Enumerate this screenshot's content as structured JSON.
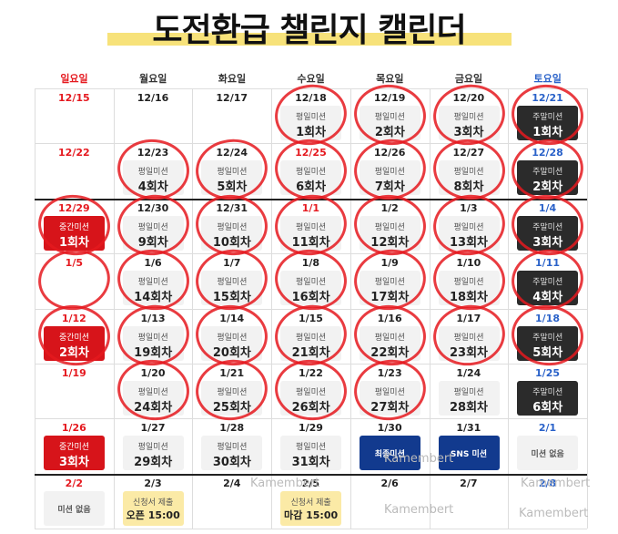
{
  "title": "도전환급 챌린지 캘린더",
  "weekdays": [
    "일요일",
    "월요일",
    "화요일",
    "수요일",
    "목요일",
    "금요일",
    "토요일"
  ],
  "weeks": [
    [
      {
        "date": "12/15"
      },
      {
        "date": "12/16"
      },
      {
        "date": "12/17"
      },
      {
        "date": "12/18",
        "mission": "평일미션",
        "count": "1회차"
      },
      {
        "date": "12/19",
        "mission": "평일미션",
        "count": "2회차"
      },
      {
        "date": "12/20",
        "mission": "평일미션",
        "count": "3회차"
      },
      {
        "date": "12/21",
        "mission": "주말미션",
        "count": "1회차"
      }
    ],
    [
      {
        "date": "12/22"
      },
      {
        "date": "12/23",
        "mission": "평일미션",
        "count": "4회차"
      },
      {
        "date": "12/24",
        "mission": "평일미션",
        "count": "5회차"
      },
      {
        "date": "12/25",
        "mission": "평일미션",
        "count": "6회차"
      },
      {
        "date": "12/26",
        "mission": "평일미션",
        "count": "7회차"
      },
      {
        "date": "12/27",
        "mission": "평일미션",
        "count": "8회차"
      },
      {
        "date": "12/28",
        "mission": "주말미션",
        "count": "2회차"
      }
    ],
    [
      {
        "date": "12/29",
        "mission": "중간미션",
        "count": "1회차"
      },
      {
        "date": "12/30",
        "mission": "평일미션",
        "count": "9회차"
      },
      {
        "date": "12/31",
        "mission": "평일미션",
        "count": "10회차"
      },
      {
        "date": "1/1",
        "mission": "평일미션",
        "count": "11회차"
      },
      {
        "date": "1/2",
        "mission": "평일미션",
        "count": "12회차"
      },
      {
        "date": "1/3",
        "mission": "평일미션",
        "count": "13회차"
      },
      {
        "date": "1/4",
        "mission": "주말미션",
        "count": "3회차"
      }
    ],
    [
      {
        "date": "1/5"
      },
      {
        "date": "1/6",
        "mission": "평일미션",
        "count": "14회차"
      },
      {
        "date": "1/7",
        "mission": "평일미션",
        "count": "15회차"
      },
      {
        "date": "1/8",
        "mission": "평일미션",
        "count": "16회차"
      },
      {
        "date": "1/9",
        "mission": "평일미션",
        "count": "17회차"
      },
      {
        "date": "1/10",
        "mission": "평일미션",
        "count": "18회차"
      },
      {
        "date": "1/11",
        "mission": "주말미션",
        "count": "4회차"
      }
    ],
    [
      {
        "date": "1/12",
        "mission": "중간미션",
        "count": "2회차"
      },
      {
        "date": "1/13",
        "mission": "평일미션",
        "count": "19회차"
      },
      {
        "date": "1/14",
        "mission": "평일미션",
        "count": "20회차"
      },
      {
        "date": "1/15",
        "mission": "평일미션",
        "count": "21회차"
      },
      {
        "date": "1/16",
        "mission": "평일미션",
        "count": "22회차"
      },
      {
        "date": "1/17",
        "mission": "평일미션",
        "count": "23회차"
      },
      {
        "date": "1/18",
        "mission": "주말미션",
        "count": "5회차"
      }
    ],
    [
      {
        "date": "1/19"
      },
      {
        "date": "1/20",
        "mission": "평일미션",
        "count": "24회차"
      },
      {
        "date": "1/21",
        "mission": "평일미션",
        "count": "25회차"
      },
      {
        "date": "1/22",
        "mission": "평일미션",
        "count": "26회차"
      },
      {
        "date": "1/23",
        "mission": "평일미션",
        "count": "27회차"
      },
      {
        "date": "1/24",
        "mission": "평일미션",
        "count": "28회차"
      },
      {
        "date": "1/25",
        "mission": "주말미션",
        "count": "6회차"
      }
    ],
    [
      {
        "date": "1/26",
        "mission": "중간미션",
        "count": "3회차"
      },
      {
        "date": "1/27",
        "mission": "평일미션",
        "count": "29회차"
      },
      {
        "date": "1/28",
        "mission": "평일미션",
        "count": "30회차"
      },
      {
        "date": "1/29",
        "mission": "평일미션",
        "count": "31회차"
      },
      {
        "date": "1/30",
        "mission": "최종미션"
      },
      {
        "date": "1/31",
        "mission": "SNS 미션"
      },
      {
        "date": "2/1",
        "mission": "미션 없음"
      }
    ],
    [
      {
        "date": "2/2",
        "mission": "미션 없음"
      },
      {
        "date": "2/3",
        "mission": "신청서 제출",
        "count": "오픈 15:00"
      },
      {
        "date": "2/4"
      },
      {
        "date": "2/5",
        "mission": "신청서 제출",
        "count": "마감 15:00"
      },
      {
        "date": "2/6"
      },
      {
        "date": "2/7"
      },
      {
        "date": "2/8"
      }
    ]
  ],
  "watermarks": [
    "Kamembert",
    "Kamembert",
    "Kamembert",
    "Kamembert",
    "Kamembert"
  ]
}
